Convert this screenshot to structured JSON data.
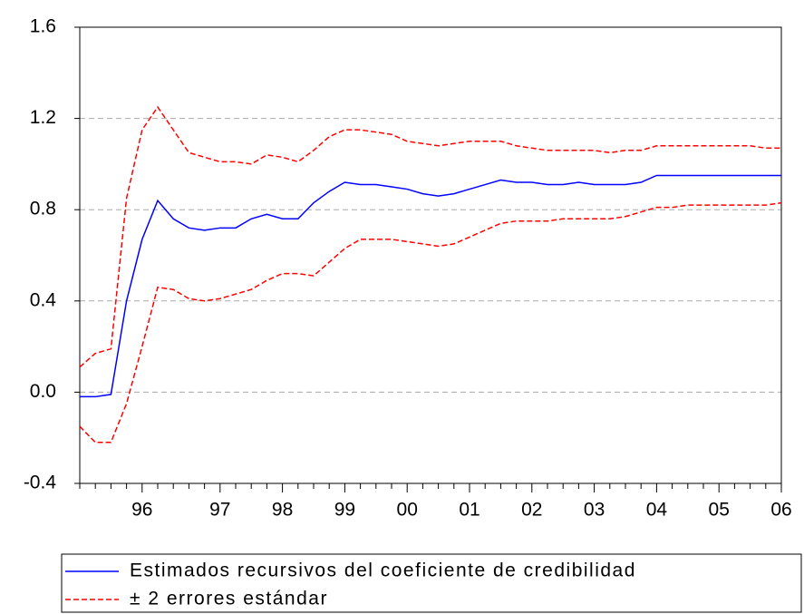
{
  "chart_data": {
    "type": "line",
    "categories": [
      null,
      null,
      null,
      null,
      "96",
      null,
      null,
      null,
      null,
      "97",
      null,
      null,
      null,
      "98",
      null,
      null,
      null,
      "99",
      null,
      null,
      null,
      "00",
      null,
      null,
      null,
      "01",
      null,
      null,
      null,
      "02",
      null,
      null,
      null,
      "03",
      null,
      null,
      null,
      "04",
      null,
      null,
      null,
      "05",
      null,
      null,
      null,
      "06"
    ],
    "series": [
      {
        "name": "Estimados recursivos del coeficiente de credibilidad",
        "color": "#0000ff",
        "dashed": false,
        "values": [
          -0.02,
          -0.02,
          -0.01,
          0.4,
          0.67,
          0.84,
          0.76,
          0.72,
          0.71,
          0.72,
          0.72,
          0.76,
          0.78,
          0.76,
          0.76,
          0.83,
          0.88,
          0.92,
          0.91,
          0.91,
          0.9,
          0.89,
          0.87,
          0.86,
          0.87,
          0.89,
          0.91,
          0.93,
          0.92,
          0.92,
          0.91,
          0.91,
          0.92,
          0.91,
          0.91,
          0.91,
          0.92,
          0.95,
          0.95,
          0.95,
          0.95,
          0.95,
          0.95,
          0.95,
          0.95,
          0.95
        ]
      },
      {
        "name": "± 2 errores estándar",
        "color": "#ff0000",
        "dashed": true,
        "values": [
          0.11,
          0.17,
          0.19,
          0.85,
          1.15,
          1.25,
          1.15,
          1.05,
          1.03,
          1.01,
          1.01,
          1.0,
          1.04,
          1.03,
          1.01,
          1.06,
          1.12,
          1.15,
          1.15,
          1.14,
          1.13,
          1.1,
          1.09,
          1.08,
          1.09,
          1.1,
          1.1,
          1.1,
          1.08,
          1.07,
          1.06,
          1.06,
          1.06,
          1.06,
          1.05,
          1.06,
          1.06,
          1.08,
          1.08,
          1.08,
          1.08,
          1.08,
          1.08,
          1.08,
          1.07,
          1.07
        ]
      },
      {
        "color": "#ff0000",
        "dashed": true,
        "values": [
          -0.15,
          -0.22,
          -0.22,
          -0.05,
          0.2,
          0.46,
          0.45,
          0.41,
          0.4,
          0.41,
          0.43,
          0.45,
          0.49,
          0.52,
          0.52,
          0.51,
          0.57,
          0.63,
          0.67,
          0.67,
          0.67,
          0.66,
          0.65,
          0.64,
          0.65,
          0.68,
          0.71,
          0.74,
          0.75,
          0.75,
          0.75,
          0.76,
          0.76,
          0.76,
          0.76,
          0.77,
          0.79,
          0.81,
          0.81,
          0.82,
          0.82,
          0.82,
          0.82,
          0.82,
          0.82,
          0.83
        ]
      }
    ],
    "ylim": [
      -0.4,
      1.6
    ],
    "yticks": [
      -0.4,
      {
        "value": 0,
        "label": "0.0"
      },
      0.4,
      0.8,
      1.2,
      1.6
    ],
    "grid": true
  }
}
